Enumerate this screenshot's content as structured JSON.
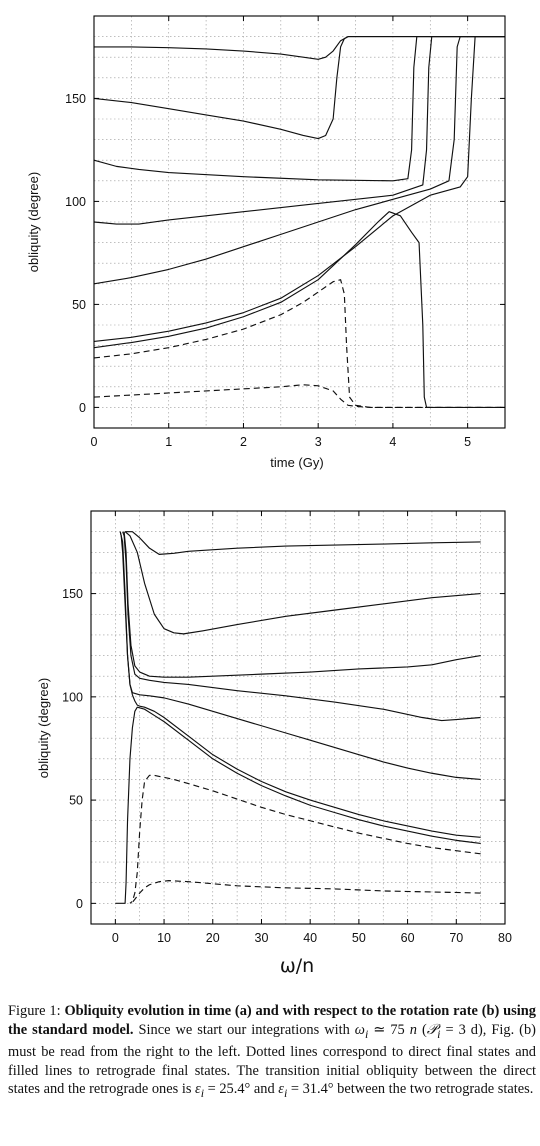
{
  "chart_data": [
    {
      "type": "line",
      "panel": "a",
      "xlabel": "time (Gy)",
      "ylabel": "obliquity (degree)",
      "xlim": [
        0,
        5.5
      ],
      "ylim": [
        -10,
        190
      ],
      "xticks": [
        0,
        1,
        2,
        3,
        4,
        5
      ],
      "yticks": [
        0,
        50,
        100,
        150
      ],
      "grid": true,
      "legend": "none",
      "series": [
        {
          "style": "solid",
          "x": [
            0,
            0.5,
            1,
            1.5,
            2,
            2.5,
            2.8,
            3.0,
            3.1,
            3.2,
            3.3,
            3.4,
            3.5,
            4.0,
            5.5
          ],
          "y": [
            175,
            175,
            174.6,
            174,
            173,
            171.5,
            170,
            169,
            170,
            173,
            178,
            180,
            180,
            180,
            180
          ]
        },
        {
          "style": "solid",
          "x": [
            0,
            0.5,
            1,
            1.5,
            2,
            2.5,
            2.8,
            3.0,
            3.1,
            3.2,
            3.25,
            3.3,
            3.35,
            3.4,
            3.5,
            5.5
          ],
          "y": [
            150,
            148,
            145,
            142,
            139,
            135,
            132,
            130.5,
            132,
            140,
            160,
            175,
            179,
            180,
            180,
            180
          ]
        },
        {
          "style": "solid",
          "x": [
            0,
            0.3,
            0.6,
            1,
            2,
            3,
            4,
            4.2,
            4.25,
            4.28,
            4.32,
            4.4,
            5.5
          ],
          "y": [
            120,
            117,
            115.5,
            114,
            112,
            110.5,
            110,
            111,
            125,
            165,
            180,
            180,
            180
          ]
        },
        {
          "style": "solid",
          "x": [
            0,
            0.3,
            0.6,
            1,
            2,
            3,
            4,
            4.4,
            4.45,
            4.48,
            4.52,
            4.6,
            5.5
          ],
          "y": [
            90,
            89,
            89,
            91,
            95,
            99,
            103,
            108,
            125,
            165,
            180,
            180,
            180
          ]
        },
        {
          "style": "solid",
          "x": [
            0,
            0.5,
            1,
            1.5,
            2,
            2.5,
            3,
            3.5,
            4,
            4.5,
            4.75,
            4.82,
            4.86,
            4.9,
            5.5
          ],
          "y": [
            60,
            63,
            67,
            72,
            78,
            84,
            90,
            96,
            101,
            106,
            110,
            130,
            175,
            180,
            180
          ]
        },
        {
          "style": "solid",
          "x": [
            0,
            0.5,
            1,
            1.5,
            2,
            2.5,
            3,
            3.5,
            4,
            4.5,
            4.9,
            5.0,
            5.05,
            5.1,
            5.5
          ],
          "y": [
            32,
            34,
            37,
            41,
            46,
            53,
            64,
            78,
            93,
            103,
            107,
            112,
            150,
            180,
            180
          ]
        },
        {
          "style": "solid",
          "x": [
            0,
            0.5,
            1,
            1.5,
            2,
            2.5,
            3,
            3.5,
            3.8,
            3.95,
            4.1,
            4.25,
            4.35,
            4.4,
            4.42,
            4.45,
            5.5
          ],
          "y": [
            29,
            31.5,
            34.5,
            38.5,
            44,
            51,
            62,
            79,
            90,
            95,
            93,
            85,
            80,
            40,
            5,
            0,
            0
          ]
        },
        {
          "style": "dashed",
          "x": [
            0,
            0.5,
            1,
            1.5,
            2,
            2.5,
            2.8,
            3.0,
            3.2,
            3.3,
            3.35,
            3.38,
            3.42,
            3.5,
            3.7,
            4.0,
            5.5
          ],
          "y": [
            24,
            26,
            29,
            33,
            38,
            45,
            51,
            56,
            61,
            62,
            55,
            30,
            5,
            1,
            0,
            0,
            0
          ]
        },
        {
          "style": "dashed",
          "x": [
            0,
            0.5,
            1,
            1.5,
            2,
            2.5,
            2.8,
            3.0,
            3.2,
            3.3,
            3.4,
            3.5,
            3.7,
            4.0,
            5.5
          ],
          "y": [
            5,
            6,
            7,
            8,
            9,
            10,
            11,
            10.5,
            8,
            4,
            1,
            0.5,
            0,
            0,
            0
          ]
        }
      ]
    },
    {
      "type": "line",
      "panel": "b",
      "xlabel": "ω/n",
      "ylabel": "obliquity (degree)",
      "xlim": [
        -5,
        80
      ],
      "ylim": [
        -10,
        190
      ],
      "xticks": [
        0,
        10,
        20,
        30,
        40,
        50,
        60,
        70,
        80
      ],
      "yticks": [
        0,
        50,
        100,
        150
      ],
      "grid": true,
      "legend": "none",
      "series": [
        {
          "style": "solid",
          "x": [
            75,
            65,
            55,
            45,
            35,
            25,
            15,
            12,
            9,
            7,
            5,
            3.5,
            2
          ],
          "y": [
            175,
            174.6,
            174,
            173.5,
            173,
            172,
            170.5,
            169.5,
            169,
            172,
            177,
            180,
            180
          ]
        },
        {
          "style": "solid",
          "x": [
            75,
            65,
            55,
            45,
            35,
            25,
            18,
            14,
            12,
            10,
            8,
            6,
            4.5,
            3,
            2
          ],
          "y": [
            150,
            148,
            145,
            142,
            139,
            135,
            132,
            130.5,
            131,
            133,
            140,
            155,
            170,
            178,
            180
          ]
        },
        {
          "style": "solid",
          "x": [
            75,
            70,
            65,
            60,
            50,
            40,
            30,
            20,
            15,
            10,
            7,
            5,
            4,
            3.2,
            2.6,
            2.2,
            1.8
          ],
          "y": [
            120,
            118,
            115.5,
            114.5,
            113.5,
            112,
            111,
            110,
            109.5,
            109.5,
            110,
            112,
            115,
            125,
            145,
            170,
            180
          ]
        },
        {
          "style": "solid",
          "x": [
            75,
            70,
            67,
            63,
            55,
            45,
            35,
            25,
            15,
            10,
            7,
            5,
            4,
            3.2,
            2.6,
            2.2,
            1.8,
            1.5
          ],
          "y": [
            90,
            89,
            88.5,
            90,
            94,
            97.5,
            100.5,
            103,
            106,
            107,
            108,
            109,
            111,
            120,
            140,
            165,
            178,
            180
          ]
        },
        {
          "style": "solid",
          "x": [
            75,
            70,
            65,
            60,
            55,
            50,
            45,
            40,
            35,
            30,
            25,
            20,
            15,
            10,
            7,
            5,
            3.5,
            3,
            2.5,
            2,
            1.5,
            1.2,
            1
          ],
          "y": [
            60,
            61,
            63,
            65.5,
            68.5,
            72,
            75.5,
            79,
            82.5,
            86,
            89.5,
            93,
            96.5,
            99.5,
            100.5,
            101,
            102,
            106,
            120,
            145,
            170,
            178,
            180
          ]
        },
        {
          "style": "solid",
          "x": [
            75,
            70,
            65,
            60,
            55,
            50,
            45,
            40,
            35,
            30,
            25,
            20,
            15,
            10,
            8,
            6,
            5,
            4.5,
            4,
            3.5,
            3,
            2.5,
            2,
            1.5,
            1
          ],
          "y": [
            32,
            33,
            35,
            37.5,
            40,
            43,
            46.5,
            50,
            54,
            59,
            65,
            72,
            81,
            90,
            93,
            95,
            95.5,
            96,
            98,
            101,
            106,
            120,
            150,
            175,
            180
          ]
        },
        {
          "style": "solid",
          "x": [
            75,
            70,
            65,
            60,
            55,
            50,
            45,
            40,
            35,
            30,
            25,
            20,
            15,
            10,
            8,
            6,
            4.5,
            4,
            3.5,
            3,
            2.5,
            2.2,
            2.0,
            1.5,
            1,
            0
          ],
          "y": [
            29,
            30.5,
            32.5,
            35,
            37.5,
            40.5,
            44,
            47.5,
            52,
            57,
            63,
            70,
            79,
            88,
            91,
            94,
            95,
            93,
            85,
            70,
            40,
            10,
            0,
            0,
            0,
            0
          ]
        },
        {
          "style": "dashed",
          "x": [
            75,
            70,
            65,
            60,
            55,
            50,
            45,
            40,
            35,
            30,
            25,
            20,
            15,
            12,
            10,
            8,
            7,
            6,
            5.5,
            5,
            4.5,
            4,
            3.5,
            3
          ],
          "y": [
            24,
            25.5,
            27,
            29,
            31.5,
            34,
            37,
            40,
            43,
            46.5,
            50.5,
            54.5,
            58,
            60,
            61,
            62,
            62,
            59,
            50,
            35,
            15,
            5,
            1,
            0
          ]
        },
        {
          "style": "dashed",
          "x": [
            75,
            65,
            55,
            45,
            35,
            25,
            20,
            15,
            11,
            9,
            7,
            6,
            5,
            4,
            3.5,
            3
          ],
          "y": [
            5,
            5.5,
            6,
            7,
            7.5,
            8.5,
            9.5,
            10.5,
            11,
            10.5,
            9,
            7.5,
            5,
            2,
            0.5,
            0
          ]
        }
      ]
    }
  ],
  "caption": {
    "figure_label": "Figure 1:",
    "title": "Obliquity evolution in time (a) and with respect to the rotation rate (b) using the standard model.",
    "text_1": "Since we start our integrations with",
    "omega_init": "ω",
    "sub_i": "i",
    "text_2": " ≃ 75",
    "n_var": "n",
    "text_3": " (",
    "P_var": "𝒫",
    "text_4": " = 3 d), Fig. (b) must be read from the right to the left. Dotted lines correspond to direct final states and filled lines to retrograde final states. The transition initial obliquity between the direct states and the retrograde ones is ",
    "eps_var": "ε",
    "text_5": " = 25.4° and ",
    "text_6": " = 31.4° between the two retrograde states."
  }
}
